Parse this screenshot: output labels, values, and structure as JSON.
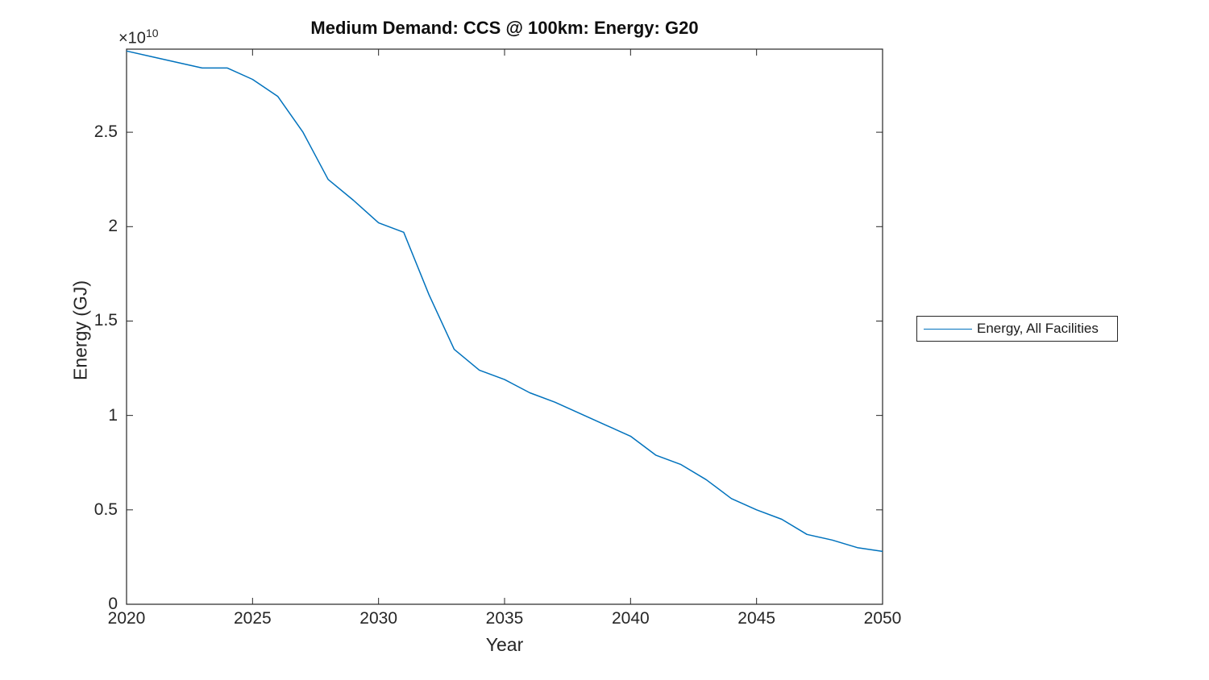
{
  "title": "Medium Demand: CCS @ 100km: Energy: G20",
  "axes": {
    "xlabel": "Year",
    "ylabel": "Energy (GJ)",
    "offset_base": "×10",
    "offset_exponent": "10"
  },
  "legend": {
    "items": [
      {
        "label": "Energy, All Facilities",
        "color": "#0072BD"
      }
    ]
  },
  "colors": {
    "line": "#0072BD",
    "axis": "#262626",
    "text": "#262626",
    "background": "#ffffff"
  },
  "chart_data": {
    "type": "line",
    "title": "Medium Demand: CCS @ 100km: Energy: G20",
    "xlabel": "Year",
    "ylabel": "Energy (GJ)",
    "y_axis_multiplier": "1e10",
    "grid": false,
    "legend_position": "right-outside",
    "xlim": [
      2020,
      2050
    ],
    "ylim": [
      0,
      29400000000.0
    ],
    "x": [
      2020,
      2021,
      2022,
      2023,
      2024,
      2025,
      2026,
      2027,
      2028,
      2029,
      2030,
      2031,
      2032,
      2033,
      2034,
      2035,
      2036,
      2037,
      2038,
      2039,
      2040,
      2041,
      2042,
      2043,
      2044,
      2045,
      2046,
      2047,
      2048,
      2049,
      2050
    ],
    "series": [
      {
        "name": "Energy, All Facilities",
        "color": "#0072BD",
        "values": [
          29300000000.0,
          29000000000.0,
          28700000000.0,
          28400000000.0,
          28400000000.0,
          27800000000.0,
          26900000000.0,
          25000000000.0,
          22500000000.0,
          21400000000.0,
          20200000000.0,
          19700000000.0,
          16400000000.0,
          13500000000.0,
          12400000000.0,
          11900000000.0,
          11200000000.0,
          10700000000.0,
          10100000000.0,
          9500000000.0,
          8900000000.0,
          7900000000.0,
          7400000000.0,
          6600000000.0,
          5600000000.0,
          5000000000.0,
          4500000000.0,
          3700000000.0,
          3400000000.0,
          3000000000.0,
          2800000000.0
        ]
      }
    ],
    "xticks": [
      {
        "value": 2020,
        "label": "2020"
      },
      {
        "value": 2025,
        "label": "2025"
      },
      {
        "value": 2030,
        "label": "2030"
      },
      {
        "value": 2035,
        "label": "2035"
      },
      {
        "value": 2040,
        "label": "2040"
      },
      {
        "value": 2045,
        "label": "2045"
      },
      {
        "value": 2050,
        "label": "2050"
      }
    ],
    "yticks": [
      {
        "value": 0,
        "label": "0"
      },
      {
        "value": 5000000000.0,
        "label": "0.5"
      },
      {
        "value": 10000000000.0,
        "label": "1"
      },
      {
        "value": 15000000000.0,
        "label": "1.5"
      },
      {
        "value": 20000000000.0,
        "label": "2"
      },
      {
        "value": 25000000000.0,
        "label": "2.5"
      }
    ]
  }
}
